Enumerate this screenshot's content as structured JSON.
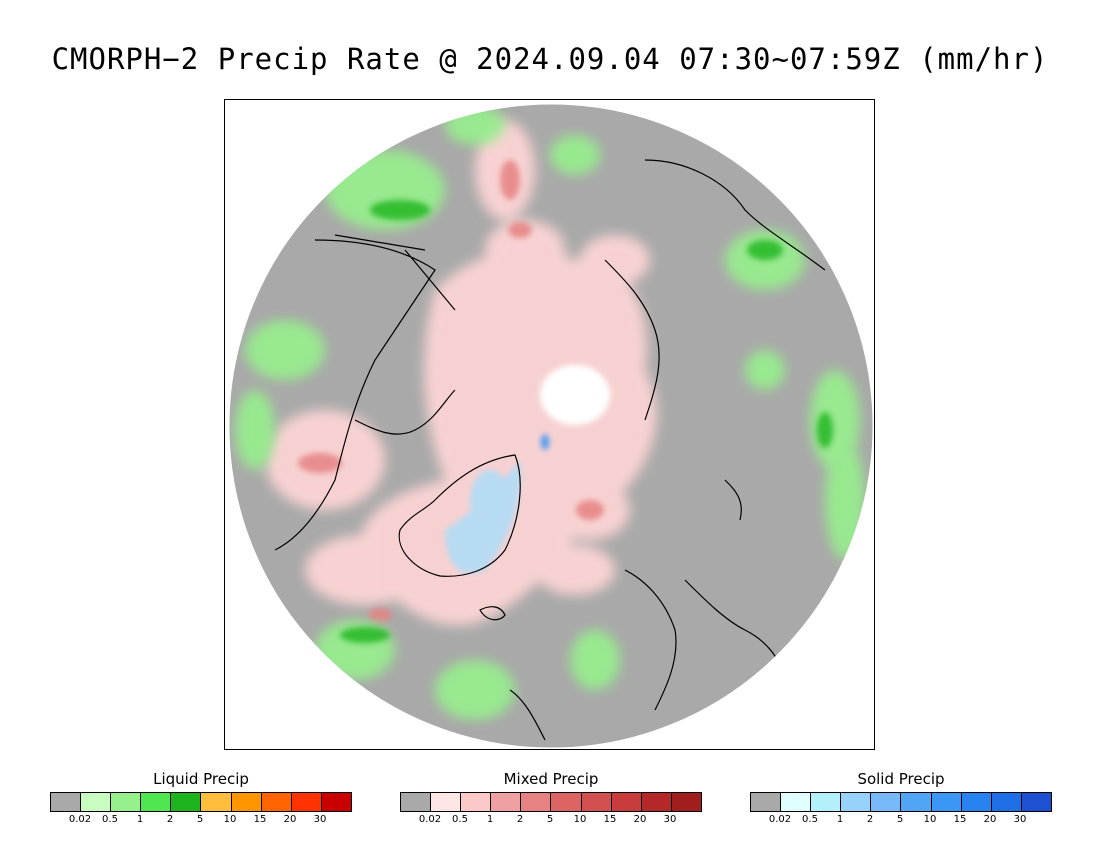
{
  "title": "CMORPH−2 Precip Rate @ 2024.09.04 07:30~07:59Z (mm/hr)",
  "map": {
    "projection": "north polar stereographic",
    "background_color": "#a9a9a9",
    "coastline_color": "#000000"
  },
  "legends": [
    {
      "id": "liquid",
      "title": "Liquid Precip",
      "colors": [
        "#a9a9a9",
        "#c8fcc0",
        "#96f08c",
        "#50e650",
        "#1eb41e",
        "#ffbe3c",
        "#ff9600",
        "#ff6400",
        "#ff3200",
        "#c80000"
      ],
      "ticks": [
        "0.02",
        "0.5",
        "1",
        "2",
        "5",
        "10",
        "15",
        "20",
        "30"
      ]
    },
    {
      "id": "mixed",
      "title": "Mixed Precip",
      "colors": [
        "#a9a9a9",
        "#ffe6e6",
        "#fcc8c8",
        "#f0a0a0",
        "#e68282",
        "#dc6464",
        "#d25050",
        "#c83c3c",
        "#b42828",
        "#a01e1e"
      ],
      "ticks": [
        "0.02",
        "0.5",
        "1",
        "2",
        "5",
        "10",
        "15",
        "20",
        "30"
      ]
    },
    {
      "id": "solid",
      "title": "Solid Precip",
      "colors": [
        "#a9a9a9",
        "#e0ffff",
        "#b4f0fa",
        "#96d2fa",
        "#78b9fa",
        "#50a5f5",
        "#3c96f5",
        "#2882f0",
        "#1e6ee6",
        "#1e50d2"
      ],
      "ticks": [
        "0.02",
        "0.5",
        "1",
        "2",
        "5",
        "10",
        "15",
        "20",
        "30"
      ]
    }
  ]
}
